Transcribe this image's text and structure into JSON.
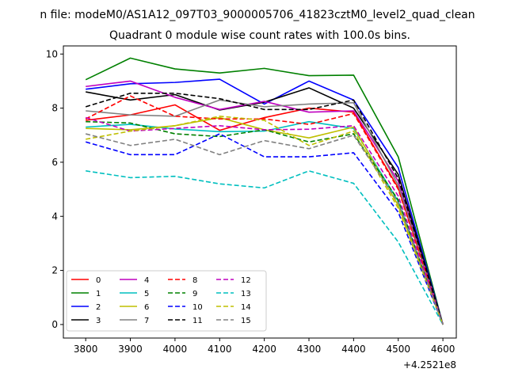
{
  "chart_data": {
    "type": "line",
    "suptitle": "n file: modeM0/AS1A12_097T03_9000005706_41823cztM0_level2_quad_clean",
    "title": "Quadrant 0 module wise count rates with 100.0s bins.",
    "xlabel": "",
    "ylabel": "",
    "x": [
      3800,
      3900,
      4000,
      4100,
      4200,
      4300,
      4400,
      4500,
      4600
    ],
    "x_offset_label": "+4.2521e8",
    "xlim": [
      3750,
      4630
    ],
    "ylim": [
      -0.5,
      10.3
    ],
    "xticks": [
      "3800",
      "3900",
      "4000",
      "4100",
      "4200",
      "4300",
      "4400",
      "4500",
      "4600"
    ],
    "yticks": [
      "0",
      "2",
      "4",
      "6",
      "8",
      "10"
    ],
    "grid": false,
    "legend_position": "lower-left",
    "legend_columns": 4,
    "series": [
      {
        "name": "0",
        "color": "#ff0000",
        "dash": "solid",
        "values": [
          7.55,
          7.75,
          8.12,
          7.18,
          7.65,
          8.0,
          7.85,
          5.05,
          0.0
        ]
      },
      {
        "name": "1",
        "color": "#008000",
        "dash": "solid",
        "values": [
          9.05,
          9.85,
          9.45,
          9.3,
          9.47,
          9.2,
          9.22,
          6.2,
          0.0
        ]
      },
      {
        "name": "2",
        "color": "#0000ff",
        "dash": "solid",
        "values": [
          8.7,
          8.9,
          8.95,
          9.07,
          8.15,
          9.0,
          8.3,
          5.8,
          0.0
        ]
      },
      {
        "name": "3",
        "color": "#000000",
        "dash": "solid",
        "values": [
          8.6,
          8.3,
          8.5,
          7.93,
          8.22,
          8.75,
          8.0,
          5.55,
          0.0
        ]
      },
      {
        "name": "4",
        "color": "#bf00bf",
        "dash": "solid",
        "values": [
          8.8,
          9.0,
          8.4,
          7.95,
          8.25,
          7.85,
          7.9,
          5.3,
          0.0
        ]
      },
      {
        "name": "5",
        "color": "#00bfbf",
        "dash": "solid",
        "values": [
          7.3,
          7.4,
          7.23,
          7.13,
          7.15,
          7.5,
          7.25,
          4.55,
          0.0
        ]
      },
      {
        "name": "6",
        "color": "#bfbf00",
        "dash": "solid",
        "values": [
          7.25,
          7.2,
          7.35,
          7.65,
          7.2,
          6.9,
          7.3,
          4.4,
          0.0
        ]
      },
      {
        "name": "7",
        "color": "#808080",
        "dash": "solid",
        "values": [
          7.9,
          7.75,
          7.7,
          8.3,
          8.05,
          8.15,
          8.2,
          5.15,
          0.0
        ]
      },
      {
        "name": "8",
        "color": "#ff0000",
        "dash": "dashed",
        "values": [
          7.6,
          8.45,
          7.7,
          7.6,
          7.6,
          7.4,
          7.8,
          5.0,
          0.0
        ]
      },
      {
        "name": "9",
        "color": "#008000",
        "dash": "dashed",
        "values": [
          7.5,
          7.45,
          7.05,
          6.95,
          7.2,
          6.75,
          7.05,
          4.6,
          0.0
        ]
      },
      {
        "name": "10",
        "color": "#0000ff",
        "dash": "dashed",
        "values": [
          6.75,
          6.28,
          6.28,
          7.05,
          6.2,
          6.2,
          6.35,
          4.15,
          0.0
        ]
      },
      {
        "name": "11",
        "color": "#000000",
        "dash": "dashed",
        "values": [
          8.05,
          8.55,
          8.55,
          8.35,
          7.95,
          7.95,
          8.3,
          5.4,
          0.0
        ]
      },
      {
        "name": "12",
        "color": "#bf00bf",
        "dash": "dashed",
        "values": [
          7.65,
          7.15,
          7.25,
          7.35,
          7.2,
          7.22,
          7.35,
          4.75,
          0.0
        ]
      },
      {
        "name": "13",
        "color": "#00bfbf",
        "dash": "dashed",
        "values": [
          5.68,
          5.43,
          5.48,
          5.2,
          5.05,
          5.68,
          5.22,
          3.05,
          0.0
        ]
      },
      {
        "name": "14",
        "color": "#bfbf00",
        "dash": "dashed",
        "values": [
          6.85,
          7.15,
          7.35,
          7.7,
          7.55,
          6.62,
          7.15,
          4.3,
          0.0
        ]
      },
      {
        "name": "15",
        "color": "#808080",
        "dash": "dashed",
        "values": [
          7.05,
          6.62,
          6.85,
          6.28,
          6.8,
          6.5,
          7.0,
          4.5,
          0.0
        ]
      }
    ]
  }
}
